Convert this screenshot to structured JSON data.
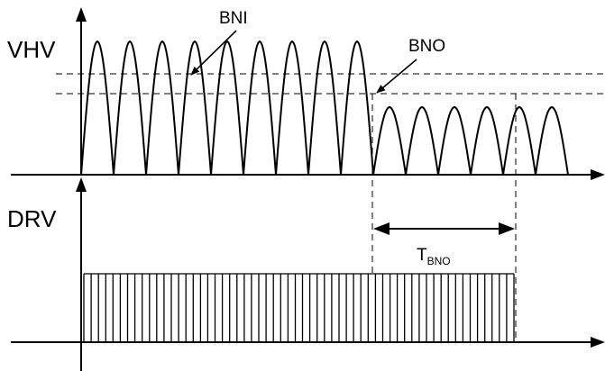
{
  "labels": {
    "vhv": "VHV",
    "drv": "DRV",
    "bni": "BNI",
    "bno": "BNO",
    "tbno_main": "T",
    "tbno_sub": "BNO"
  },
  "waveform": {
    "high_humps": 9,
    "low_humps": 6,
    "pulse_count": 60
  },
  "colors": {
    "line": "#000000",
    "background": "#ffffff"
  }
}
